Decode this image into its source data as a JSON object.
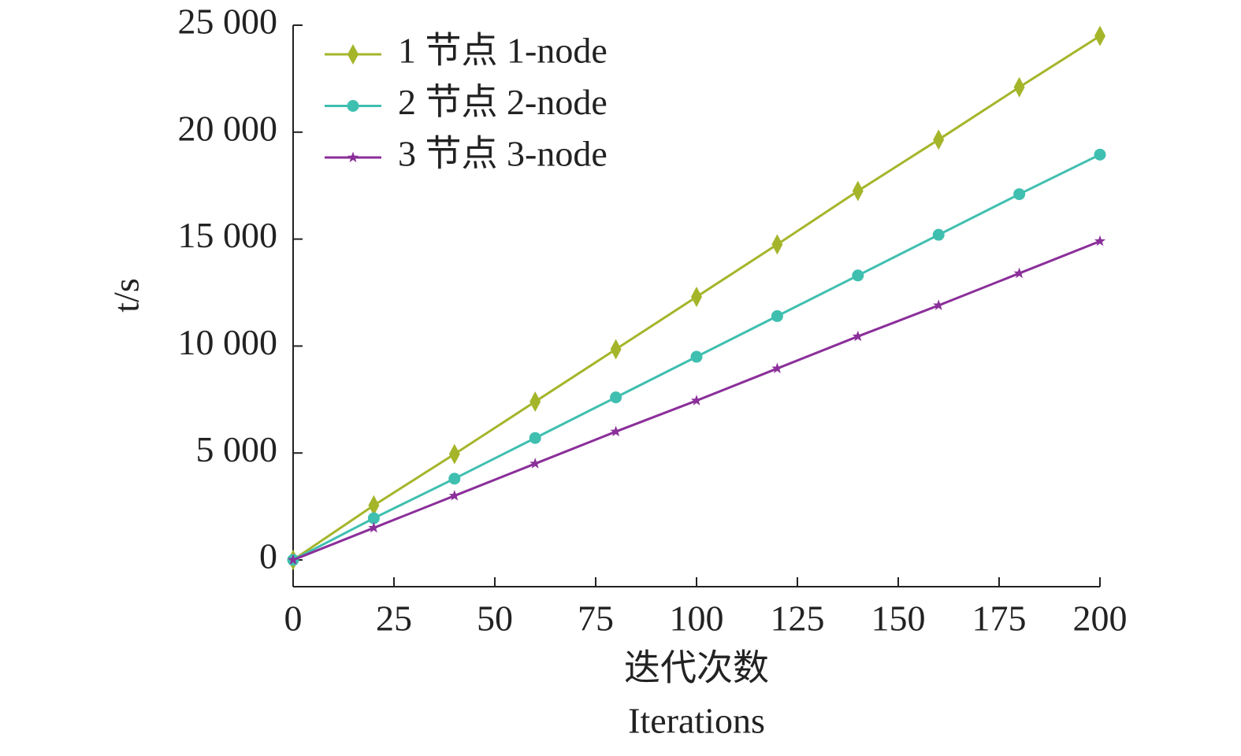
{
  "chart_data": {
    "type": "line",
    "x": [
      0,
      20,
      40,
      60,
      80,
      100,
      120,
      140,
      160,
      180,
      200
    ],
    "series": [
      {
        "name": "1 节点 1-node",
        "color": "#a5b52a",
        "marker": "diamond",
        "values": [
          0,
          2550,
          4950,
          7400,
          9850,
          12300,
          14750,
          17250,
          19650,
          22100,
          24500
        ]
      },
      {
        "name": "2 节点 2-node",
        "color": "#3fbfb0",
        "marker": "circle",
        "values": [
          0,
          1950,
          3800,
          5700,
          7600,
          9500,
          11400,
          13300,
          15200,
          17100,
          18950
        ]
      },
      {
        "name": "3 节点 3-node",
        "color": "#8b2f9a",
        "marker": "star",
        "values": [
          0,
          1500,
          3000,
          4500,
          6000,
          7450,
          8950,
          10450,
          11900,
          13400,
          14900
        ]
      }
    ],
    "xlim": [
      0,
      200
    ],
    "xticks": [
      0,
      25,
      50,
      75,
      100,
      125,
      150,
      175,
      200
    ],
    "ylim": [
      -1250,
      25000
    ],
    "yticks": [
      0,
      {
        "value": 5000,
        "label": "5 000"
      },
      {
        "value": 10000,
        "label": "10 000"
      },
      {
        "value": 15000,
        "label": "15 000"
      },
      {
        "value": 20000,
        "label": "20 000"
      },
      {
        "value": 25000,
        "label": "25 000"
      }
    ],
    "xlabel": [
      "迭代次数",
      "Iterations"
    ],
    "ylabel": "t/s",
    "legend": "upper left",
    "grid": false
  }
}
